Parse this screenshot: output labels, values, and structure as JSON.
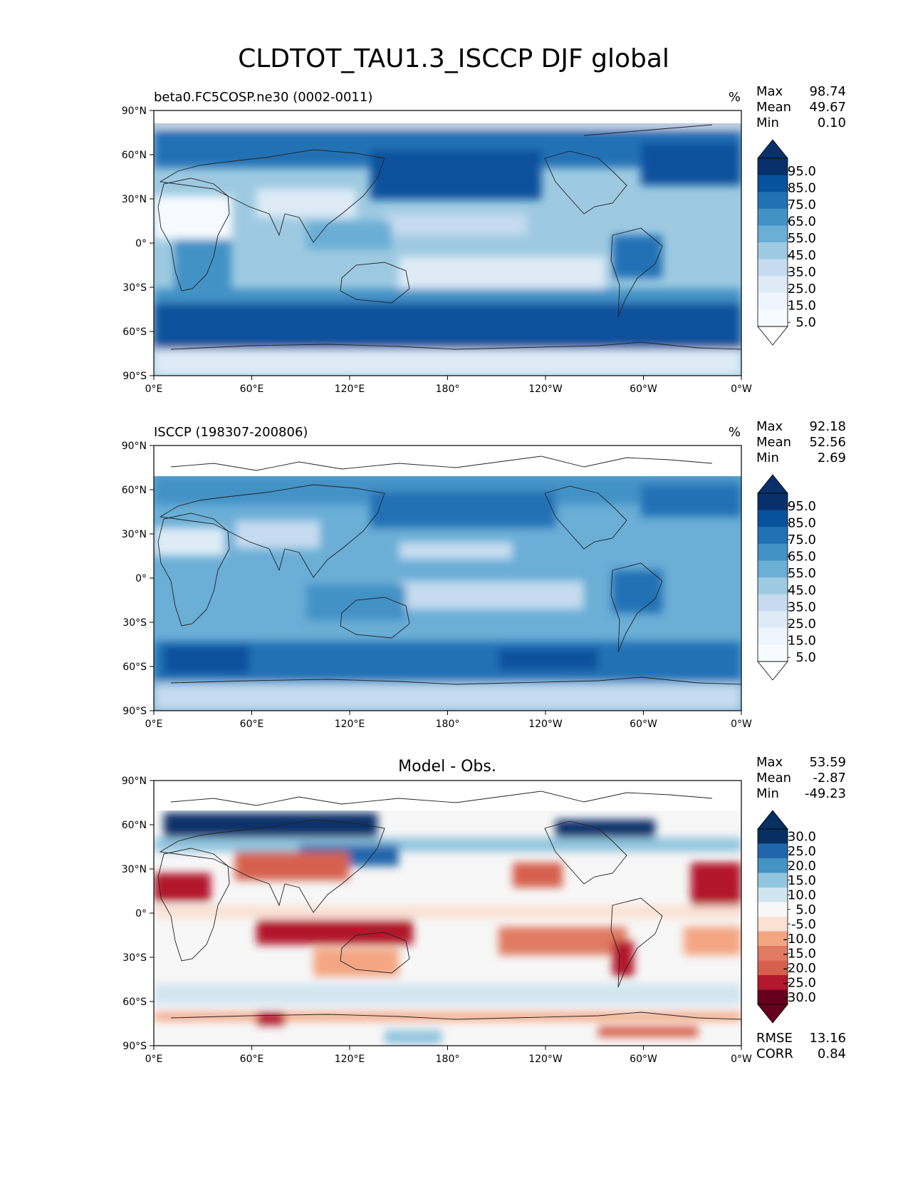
{
  "figure": {
    "title": "CLDTOT_TAU1.3_ISCCP DJF global"
  },
  "axes": {
    "lat_labels": [
      "90°N",
      "60°N",
      "30°N",
      "0°",
      "30°S",
      "60°S",
      "90°S"
    ],
    "lon_labels": [
      "0°E",
      "60°E",
      "120°E",
      "180°",
      "120°W",
      "60°W",
      "0°W"
    ]
  },
  "panels": [
    {
      "id": "test",
      "left_title": "beta0.FC5COSP.ne30 (0002-0011)",
      "center_title": "",
      "units": "%",
      "stats": [
        {
          "label": "Max",
          "value": "98.74"
        },
        {
          "label": "Mean",
          "value": "49.67"
        },
        {
          "label": "Min",
          "value": "0.10"
        }
      ],
      "extra_stats": [],
      "colorbar": {
        "labels": [
          "95.0",
          "85.0",
          "75.0",
          "65.0",
          "55.0",
          "45.0",
          "35.0",
          "25.0",
          "15.0",
          "5.0"
        ],
        "colors": [
          "#08306b",
          "#08519c",
          "#2171b5",
          "#4292c6",
          "#6baed6",
          "#9ecae1",
          "#c6dbef",
          "#deebf7",
          "#eef5fc",
          "#f7fbff"
        ],
        "extend_low": "#ffffff"
      },
      "map_colors": {
        "background": "#9ecae1",
        "band_south": "#08519c",
        "antarctic": "#deebf7",
        "arctic": "#2171b5",
        "trade_cloud_gap": "#eef5fc",
        "desert": "#f7fbff"
      }
    },
    {
      "id": "ref",
      "left_title": "ISCCP (198307-200806)",
      "center_title": "",
      "units": "%",
      "stats": [
        {
          "label": "Max",
          "value": "92.18"
        },
        {
          "label": "Mean",
          "value": "52.56"
        },
        {
          "label": "Min",
          "value": "2.69"
        }
      ],
      "extra_stats": [],
      "colorbar": {
        "labels": [
          "95.0",
          "85.0",
          "75.0",
          "65.0",
          "55.0",
          "45.0",
          "35.0",
          "25.0",
          "15.0",
          "5.0"
        ],
        "colors": [
          "#08306b",
          "#08519c",
          "#2171b5",
          "#4292c6",
          "#6baed6",
          "#9ecae1",
          "#c6dbef",
          "#deebf7",
          "#eef5fc",
          "#f7fbff"
        ],
        "extend_low": "#ffffff"
      },
      "map_colors": {
        "background": "#6baed6",
        "band_south": "#2171b5",
        "antarctic": "#c6dbef",
        "arctic": "#4292c6",
        "trade_cloud_gap": "#c6dbef",
        "desert": "#deebf7"
      }
    },
    {
      "id": "diff",
      "left_title": "",
      "center_title": "Model - Obs.",
      "units": "",
      "stats": [
        {
          "label": "Max",
          "value": "53.59"
        },
        {
          "label": "Mean",
          "value": "-2.87"
        },
        {
          "label": "Min",
          "value": "-49.23"
        }
      ],
      "extra_stats": [
        {
          "label": "RMSE",
          "value": "13.16"
        },
        {
          "label": "CORR",
          "value": "0.84"
        }
      ],
      "colorbar": {
        "labels": [
          "30.0",
          "25.0",
          "20.0",
          "15.0",
          "10.0",
          "5.0",
          "-5.0",
          "-10.0",
          "-15.0",
          "-20.0",
          "-25.0",
          "-30.0"
        ],
        "colors": [
          "#053061",
          "#2166ac",
          "#4393c3",
          "#92c5de",
          "#d1e5f0",
          "#f7f7f7",
          "#fbe0d3",
          "#f4a582",
          "#e07a62",
          "#d6604d",
          "#b2182b",
          "#67001f"
        ],
        "extend_low": "#67001f"
      },
      "map_colors": {
        "background": "#f7f7f7",
        "arctic": "#08306b",
        "neg_strong": "#b2182b",
        "neg_mid": "#e07a62",
        "neg_weak": "#fbe0d3",
        "pos_weak": "#d1e5f0",
        "pos_mid": "#92c5de"
      }
    }
  ]
}
